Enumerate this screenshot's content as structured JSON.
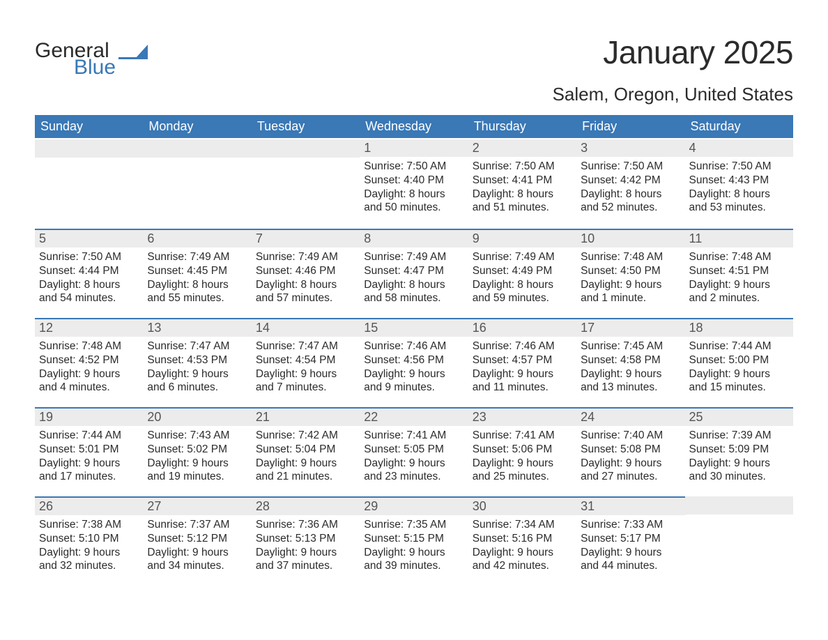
{
  "brand": {
    "word1": "General",
    "word2": "Blue",
    "accent_color": "#3a78b6"
  },
  "title": "January 2025",
  "location": "Salem, Oregon, United States",
  "colors": {
    "header_bg": "#3a78b6",
    "header_text": "#ffffff",
    "daynum_bg": "#ececec",
    "row_border": "#3a78b6",
    "text": "#2b2b2b",
    "page_bg": "#ffffff"
  },
  "days_of_week": [
    "Sunday",
    "Monday",
    "Tuesday",
    "Wednesday",
    "Thursday",
    "Friday",
    "Saturday"
  ],
  "weeks": [
    [
      null,
      null,
      null,
      {
        "n": "1",
        "sunrise": "Sunrise: 7:50 AM",
        "sunset": "Sunset: 4:40 PM",
        "daylight": "Daylight: 8 hours and 50 minutes."
      },
      {
        "n": "2",
        "sunrise": "Sunrise: 7:50 AM",
        "sunset": "Sunset: 4:41 PM",
        "daylight": "Daylight: 8 hours and 51 minutes."
      },
      {
        "n": "3",
        "sunrise": "Sunrise: 7:50 AM",
        "sunset": "Sunset: 4:42 PM",
        "daylight": "Daylight: 8 hours and 52 minutes."
      },
      {
        "n": "4",
        "sunrise": "Sunrise: 7:50 AM",
        "sunset": "Sunset: 4:43 PM",
        "daylight": "Daylight: 8 hours and 53 minutes."
      }
    ],
    [
      {
        "n": "5",
        "sunrise": "Sunrise: 7:50 AM",
        "sunset": "Sunset: 4:44 PM",
        "daylight": "Daylight: 8 hours and 54 minutes."
      },
      {
        "n": "6",
        "sunrise": "Sunrise: 7:49 AM",
        "sunset": "Sunset: 4:45 PM",
        "daylight": "Daylight: 8 hours and 55 minutes."
      },
      {
        "n": "7",
        "sunrise": "Sunrise: 7:49 AM",
        "sunset": "Sunset: 4:46 PM",
        "daylight": "Daylight: 8 hours and 57 minutes."
      },
      {
        "n": "8",
        "sunrise": "Sunrise: 7:49 AM",
        "sunset": "Sunset: 4:47 PM",
        "daylight": "Daylight: 8 hours and 58 minutes."
      },
      {
        "n": "9",
        "sunrise": "Sunrise: 7:49 AM",
        "sunset": "Sunset: 4:49 PM",
        "daylight": "Daylight: 8 hours and 59 minutes."
      },
      {
        "n": "10",
        "sunrise": "Sunrise: 7:48 AM",
        "sunset": "Sunset: 4:50 PM",
        "daylight": "Daylight: 9 hours and 1 minute."
      },
      {
        "n": "11",
        "sunrise": "Sunrise: 7:48 AM",
        "sunset": "Sunset: 4:51 PM",
        "daylight": "Daylight: 9 hours and 2 minutes."
      }
    ],
    [
      {
        "n": "12",
        "sunrise": "Sunrise: 7:48 AM",
        "sunset": "Sunset: 4:52 PM",
        "daylight": "Daylight: 9 hours and 4 minutes."
      },
      {
        "n": "13",
        "sunrise": "Sunrise: 7:47 AM",
        "sunset": "Sunset: 4:53 PM",
        "daylight": "Daylight: 9 hours and 6 minutes."
      },
      {
        "n": "14",
        "sunrise": "Sunrise: 7:47 AM",
        "sunset": "Sunset: 4:54 PM",
        "daylight": "Daylight: 9 hours and 7 minutes."
      },
      {
        "n": "15",
        "sunrise": "Sunrise: 7:46 AM",
        "sunset": "Sunset: 4:56 PM",
        "daylight": "Daylight: 9 hours and 9 minutes."
      },
      {
        "n": "16",
        "sunrise": "Sunrise: 7:46 AM",
        "sunset": "Sunset: 4:57 PM",
        "daylight": "Daylight: 9 hours and 11 minutes."
      },
      {
        "n": "17",
        "sunrise": "Sunrise: 7:45 AM",
        "sunset": "Sunset: 4:58 PM",
        "daylight": "Daylight: 9 hours and 13 minutes."
      },
      {
        "n": "18",
        "sunrise": "Sunrise: 7:44 AM",
        "sunset": "Sunset: 5:00 PM",
        "daylight": "Daylight: 9 hours and 15 minutes."
      }
    ],
    [
      {
        "n": "19",
        "sunrise": "Sunrise: 7:44 AM",
        "sunset": "Sunset: 5:01 PM",
        "daylight": "Daylight: 9 hours and 17 minutes."
      },
      {
        "n": "20",
        "sunrise": "Sunrise: 7:43 AM",
        "sunset": "Sunset: 5:02 PM",
        "daylight": "Daylight: 9 hours and 19 minutes."
      },
      {
        "n": "21",
        "sunrise": "Sunrise: 7:42 AM",
        "sunset": "Sunset: 5:04 PM",
        "daylight": "Daylight: 9 hours and 21 minutes."
      },
      {
        "n": "22",
        "sunrise": "Sunrise: 7:41 AM",
        "sunset": "Sunset: 5:05 PM",
        "daylight": "Daylight: 9 hours and 23 minutes."
      },
      {
        "n": "23",
        "sunrise": "Sunrise: 7:41 AM",
        "sunset": "Sunset: 5:06 PM",
        "daylight": "Daylight: 9 hours and 25 minutes."
      },
      {
        "n": "24",
        "sunrise": "Sunrise: 7:40 AM",
        "sunset": "Sunset: 5:08 PM",
        "daylight": "Daylight: 9 hours and 27 minutes."
      },
      {
        "n": "25",
        "sunrise": "Sunrise: 7:39 AM",
        "sunset": "Sunset: 5:09 PM",
        "daylight": "Daylight: 9 hours and 30 minutes."
      }
    ],
    [
      {
        "n": "26",
        "sunrise": "Sunrise: 7:38 AM",
        "sunset": "Sunset: 5:10 PM",
        "daylight": "Daylight: 9 hours and 32 minutes."
      },
      {
        "n": "27",
        "sunrise": "Sunrise: 7:37 AM",
        "sunset": "Sunset: 5:12 PM",
        "daylight": "Daylight: 9 hours and 34 minutes."
      },
      {
        "n": "28",
        "sunrise": "Sunrise: 7:36 AM",
        "sunset": "Sunset: 5:13 PM",
        "daylight": "Daylight: 9 hours and 37 minutes."
      },
      {
        "n": "29",
        "sunrise": "Sunrise: 7:35 AM",
        "sunset": "Sunset: 5:15 PM",
        "daylight": "Daylight: 9 hours and 39 minutes."
      },
      {
        "n": "30",
        "sunrise": "Sunrise: 7:34 AM",
        "sunset": "Sunset: 5:16 PM",
        "daylight": "Daylight: 9 hours and 42 minutes."
      },
      {
        "n": "31",
        "sunrise": "Sunrise: 7:33 AM",
        "sunset": "Sunset: 5:17 PM",
        "daylight": "Daylight: 9 hours and 44 minutes."
      },
      null
    ]
  ]
}
